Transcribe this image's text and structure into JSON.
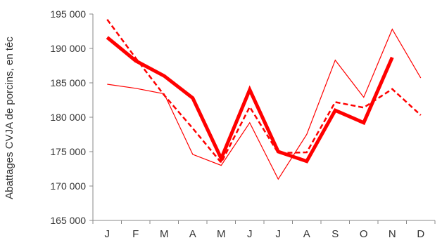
{
  "chart_data": {
    "type": "line",
    "title": "",
    "xlabel": "",
    "ylabel": "Abattages CVJA de porcins, en téc",
    "categories": [
      "J",
      "F",
      "M",
      "A",
      "M",
      "J",
      "J",
      "A",
      "S",
      "O",
      "N",
      "D"
    ],
    "ylim": [
      165000,
      195000
    ],
    "yticks": [
      165000,
      170000,
      175000,
      180000,
      185000,
      190000,
      195000
    ],
    "ytick_labels": [
      "165 000",
      "170 000",
      "175 000",
      "180 000",
      "185 000",
      "190 000",
      "195 000"
    ],
    "grid": false,
    "legend": "none",
    "series": [
      {
        "style": "thick",
        "color": "#ff0000",
        "values": [
          191600,
          188200,
          186000,
          182800,
          174000,
          184000,
          175000,
          173600,
          181000,
          179200,
          188700,
          null
        ]
      },
      {
        "style": "dashed",
        "color": "#ff0000",
        "values": [
          194200,
          188600,
          183200,
          178400,
          173400,
          181500,
          174800,
          174900,
          182200,
          181400,
          184100,
          180300
        ]
      },
      {
        "style": "thin",
        "color": "#ff0000",
        "values": [
          184800,
          184200,
          183400,
          174600,
          173000,
          179200,
          171000,
          177500,
          188300,
          182900,
          192800,
          185700
        ]
      }
    ]
  }
}
